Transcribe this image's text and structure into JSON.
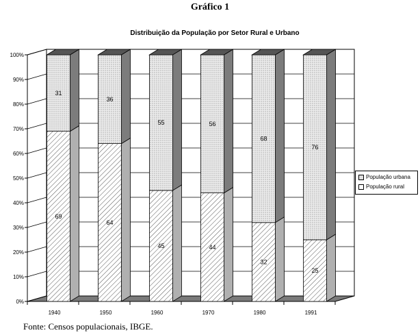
{
  "figure_heading": "Gráfico 1",
  "source": "Fonte: Censos populacionais, IBGE.",
  "chart_data": {
    "type": "bar",
    "stacked": true,
    "three_d": true,
    "title": "Distribuição da População por Setor Rural e Urbano",
    "xlabel": "",
    "ylabel": "",
    "categories": [
      "1940",
      "1950",
      "1960",
      "1970",
      "1980",
      "1991"
    ],
    "series": [
      {
        "name": "População rural",
        "values": [
          69,
          64,
          45,
          44,
          32,
          25
        ],
        "color": "#ffffff",
        "pattern": "diagonal-hatch"
      },
      {
        "name": "População urbana",
        "values": [
          31,
          36,
          55,
          56,
          68,
          76
        ],
        "color": "#e0e0e0",
        "pattern": "dotted"
      }
    ],
    "ylim": [
      0,
      100
    ],
    "y_ticks": [
      "0%",
      "10%",
      "20%",
      "30%",
      "40%",
      "50%",
      "60%",
      "70%",
      "80%",
      "90%",
      "100%"
    ],
    "grid": true,
    "legend_position": "right",
    "legend": [
      "População urbana",
      "População rural"
    ]
  }
}
